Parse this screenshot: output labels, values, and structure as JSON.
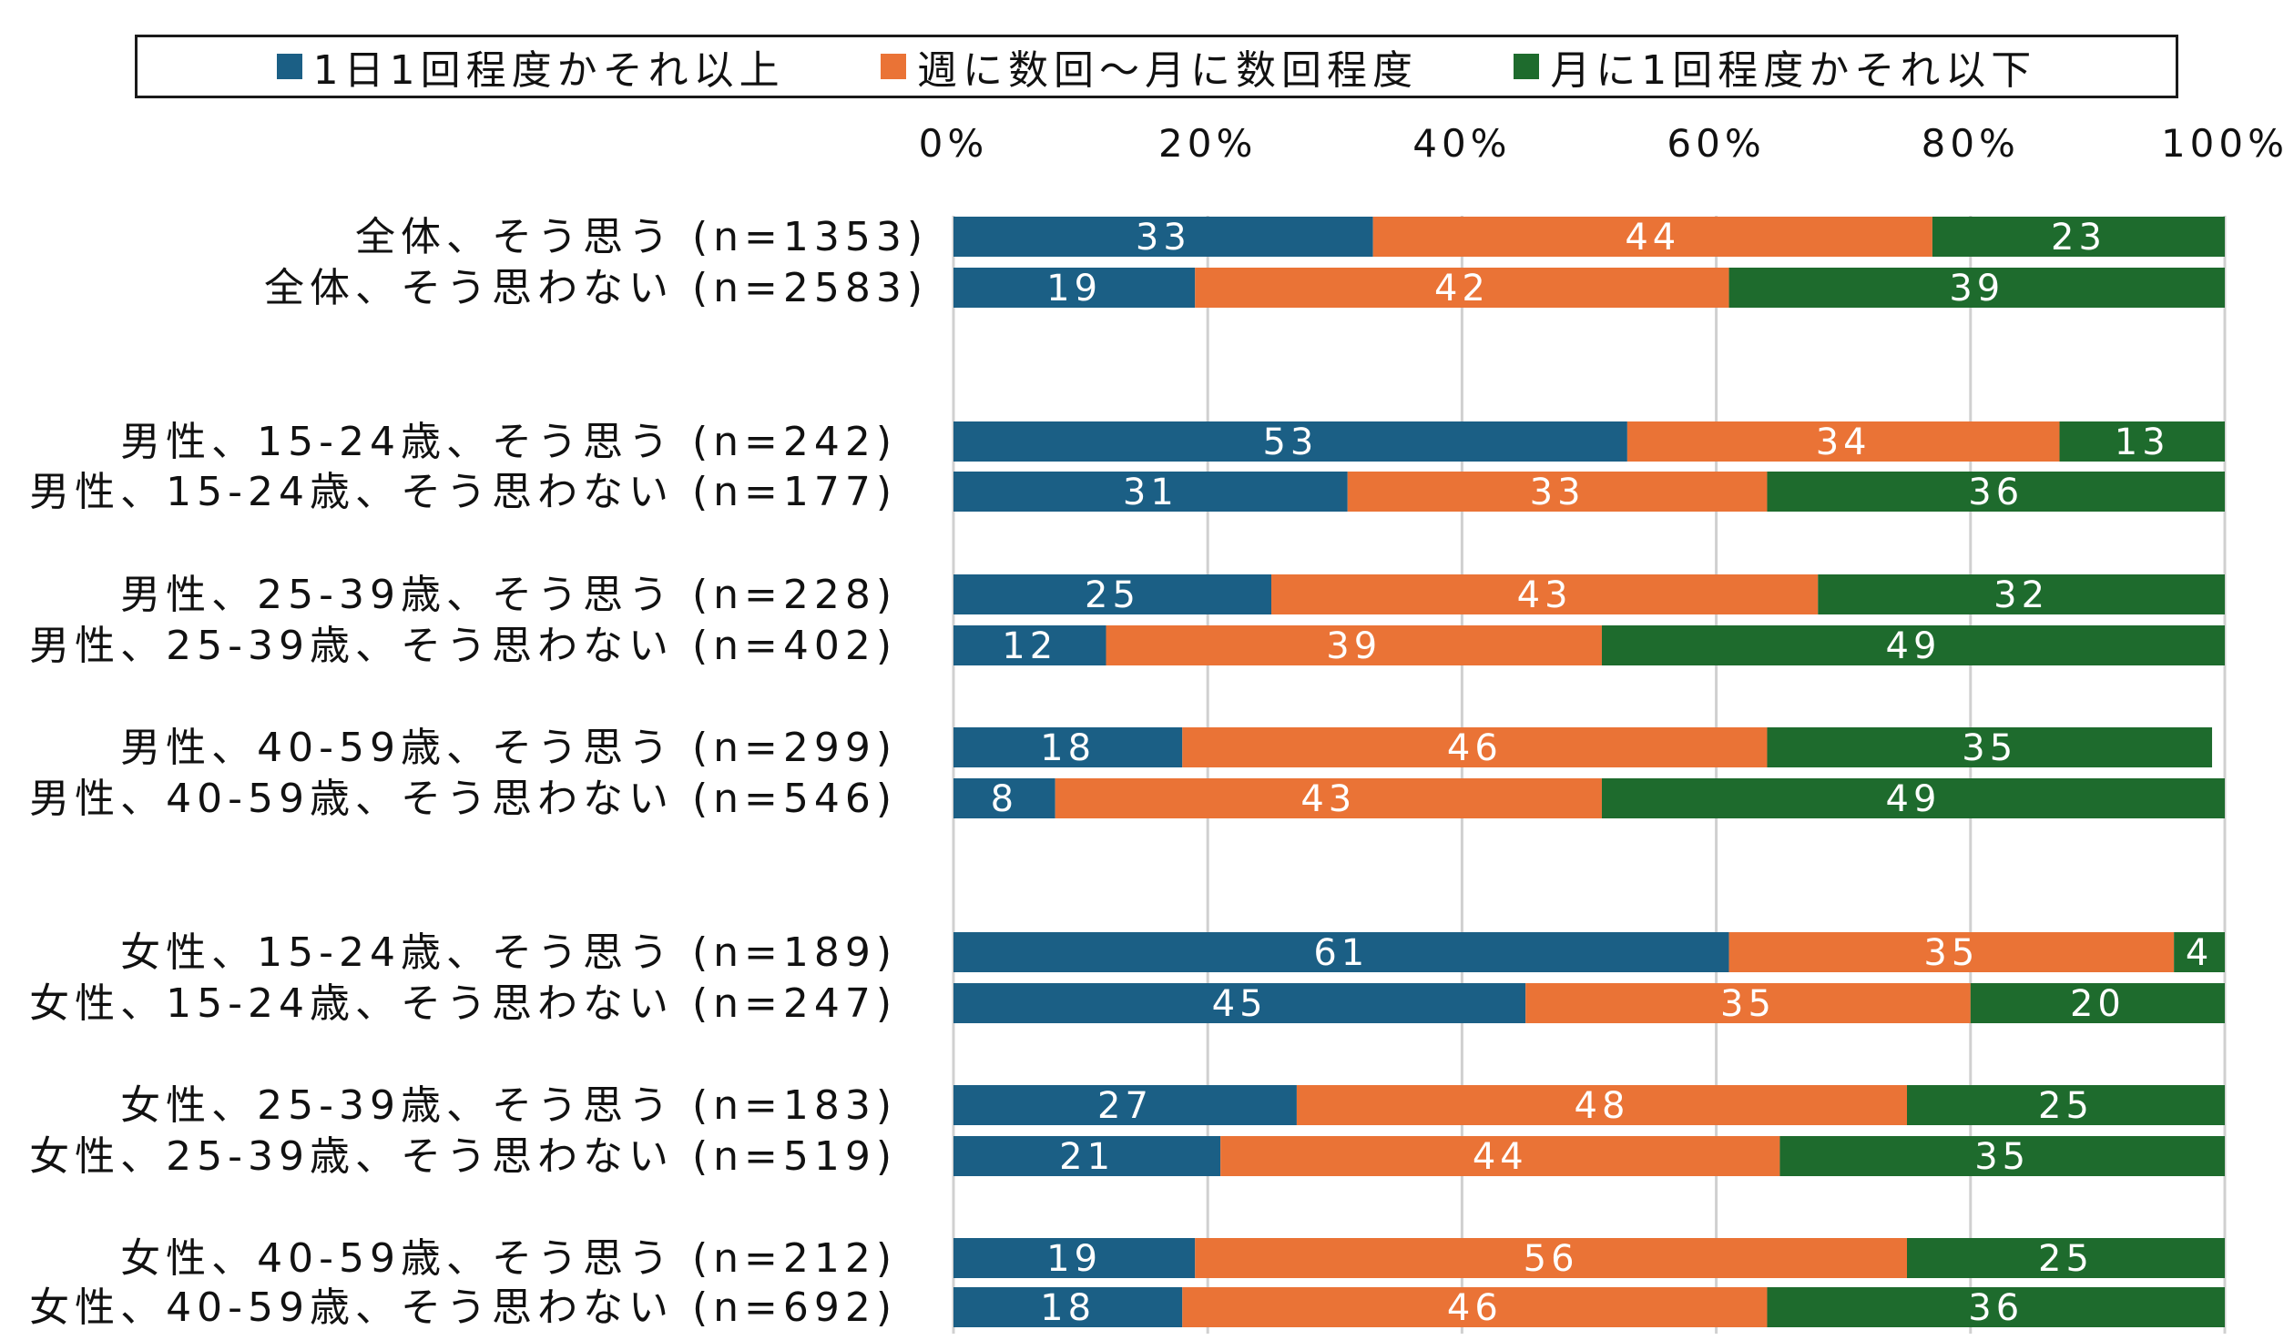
{
  "chart_data": {
    "type": "bar",
    "orientation": "horizontal",
    "stacked": "percent",
    "xlim": [
      0,
      100
    ],
    "xticks": [
      "0%",
      "20%",
      "40%",
      "60%",
      "80%",
      "100%"
    ],
    "legend_position": "top",
    "grid": "vertical",
    "colors": {
      "s1": "#1b5f85",
      "s2": "#ea7336",
      "s3": "#1e6b2d",
      "grid": "#d0d0d0"
    },
    "series": [
      {
        "name": "1日1回程度かそれ以上",
        "color": "#1b5f85"
      },
      {
        "name": "週に数回～月に数回程度",
        "color": "#ea7336"
      },
      {
        "name": "月に1回程度かそれ以下",
        "color": "#1e6b2d"
      }
    ],
    "rows": [
      {
        "label": "全体、そう思う",
        "n": "(n=1353)",
        "values": [
          33,
          44,
          23
        ]
      },
      {
        "label": "全体、そう思わない",
        "n": "(n=2583)",
        "values": [
          19,
          42,
          39
        ]
      },
      {
        "label": "男性、15-24歳、そう思う",
        "n": "(n=242)",
        "values": [
          53,
          34,
          13
        ]
      },
      {
        "label": "男性、15-24歳、そう思わない",
        "n": "(n=177)",
        "values": [
          31,
          33,
          36
        ]
      },
      {
        "label": "男性、25-39歳、そう思う",
        "n": "(n=228)",
        "values": [
          25,
          43,
          32
        ]
      },
      {
        "label": "男性、25-39歳、そう思わない",
        "n": "(n=402)",
        "values": [
          12,
          39,
          49
        ]
      },
      {
        "label": "男性、40-59歳、そう思う",
        "n": "(n=299)",
        "values": [
          18,
          46,
          35
        ]
      },
      {
        "label": "男性、40-59歳、そう思わない",
        "n": "(n=546)",
        "values": [
          8,
          43,
          49
        ]
      },
      {
        "label": "女性、15-24歳、そう思う",
        "n": "(n=189)",
        "values": [
          61,
          35,
          4
        ]
      },
      {
        "label": "女性、15-24歳、そう思わない",
        "n": "(n=247)",
        "values": [
          45,
          35,
          20
        ]
      },
      {
        "label": "女性、25-39歳、そう思う",
        "n": "(n=183)",
        "values": [
          27,
          48,
          25
        ]
      },
      {
        "label": "女性、25-39歳、そう思わない",
        "n": "(n=519)",
        "values": [
          21,
          44,
          35
        ]
      },
      {
        "label": "女性、40-59歳、そう思う",
        "n": "(n=212)",
        "values": [
          19,
          56,
          25
        ]
      },
      {
        "label": "女性、40-59歳、そう思わない",
        "n": "(n=692)",
        "values": [
          18,
          46,
          36
        ]
      }
    ]
  }
}
